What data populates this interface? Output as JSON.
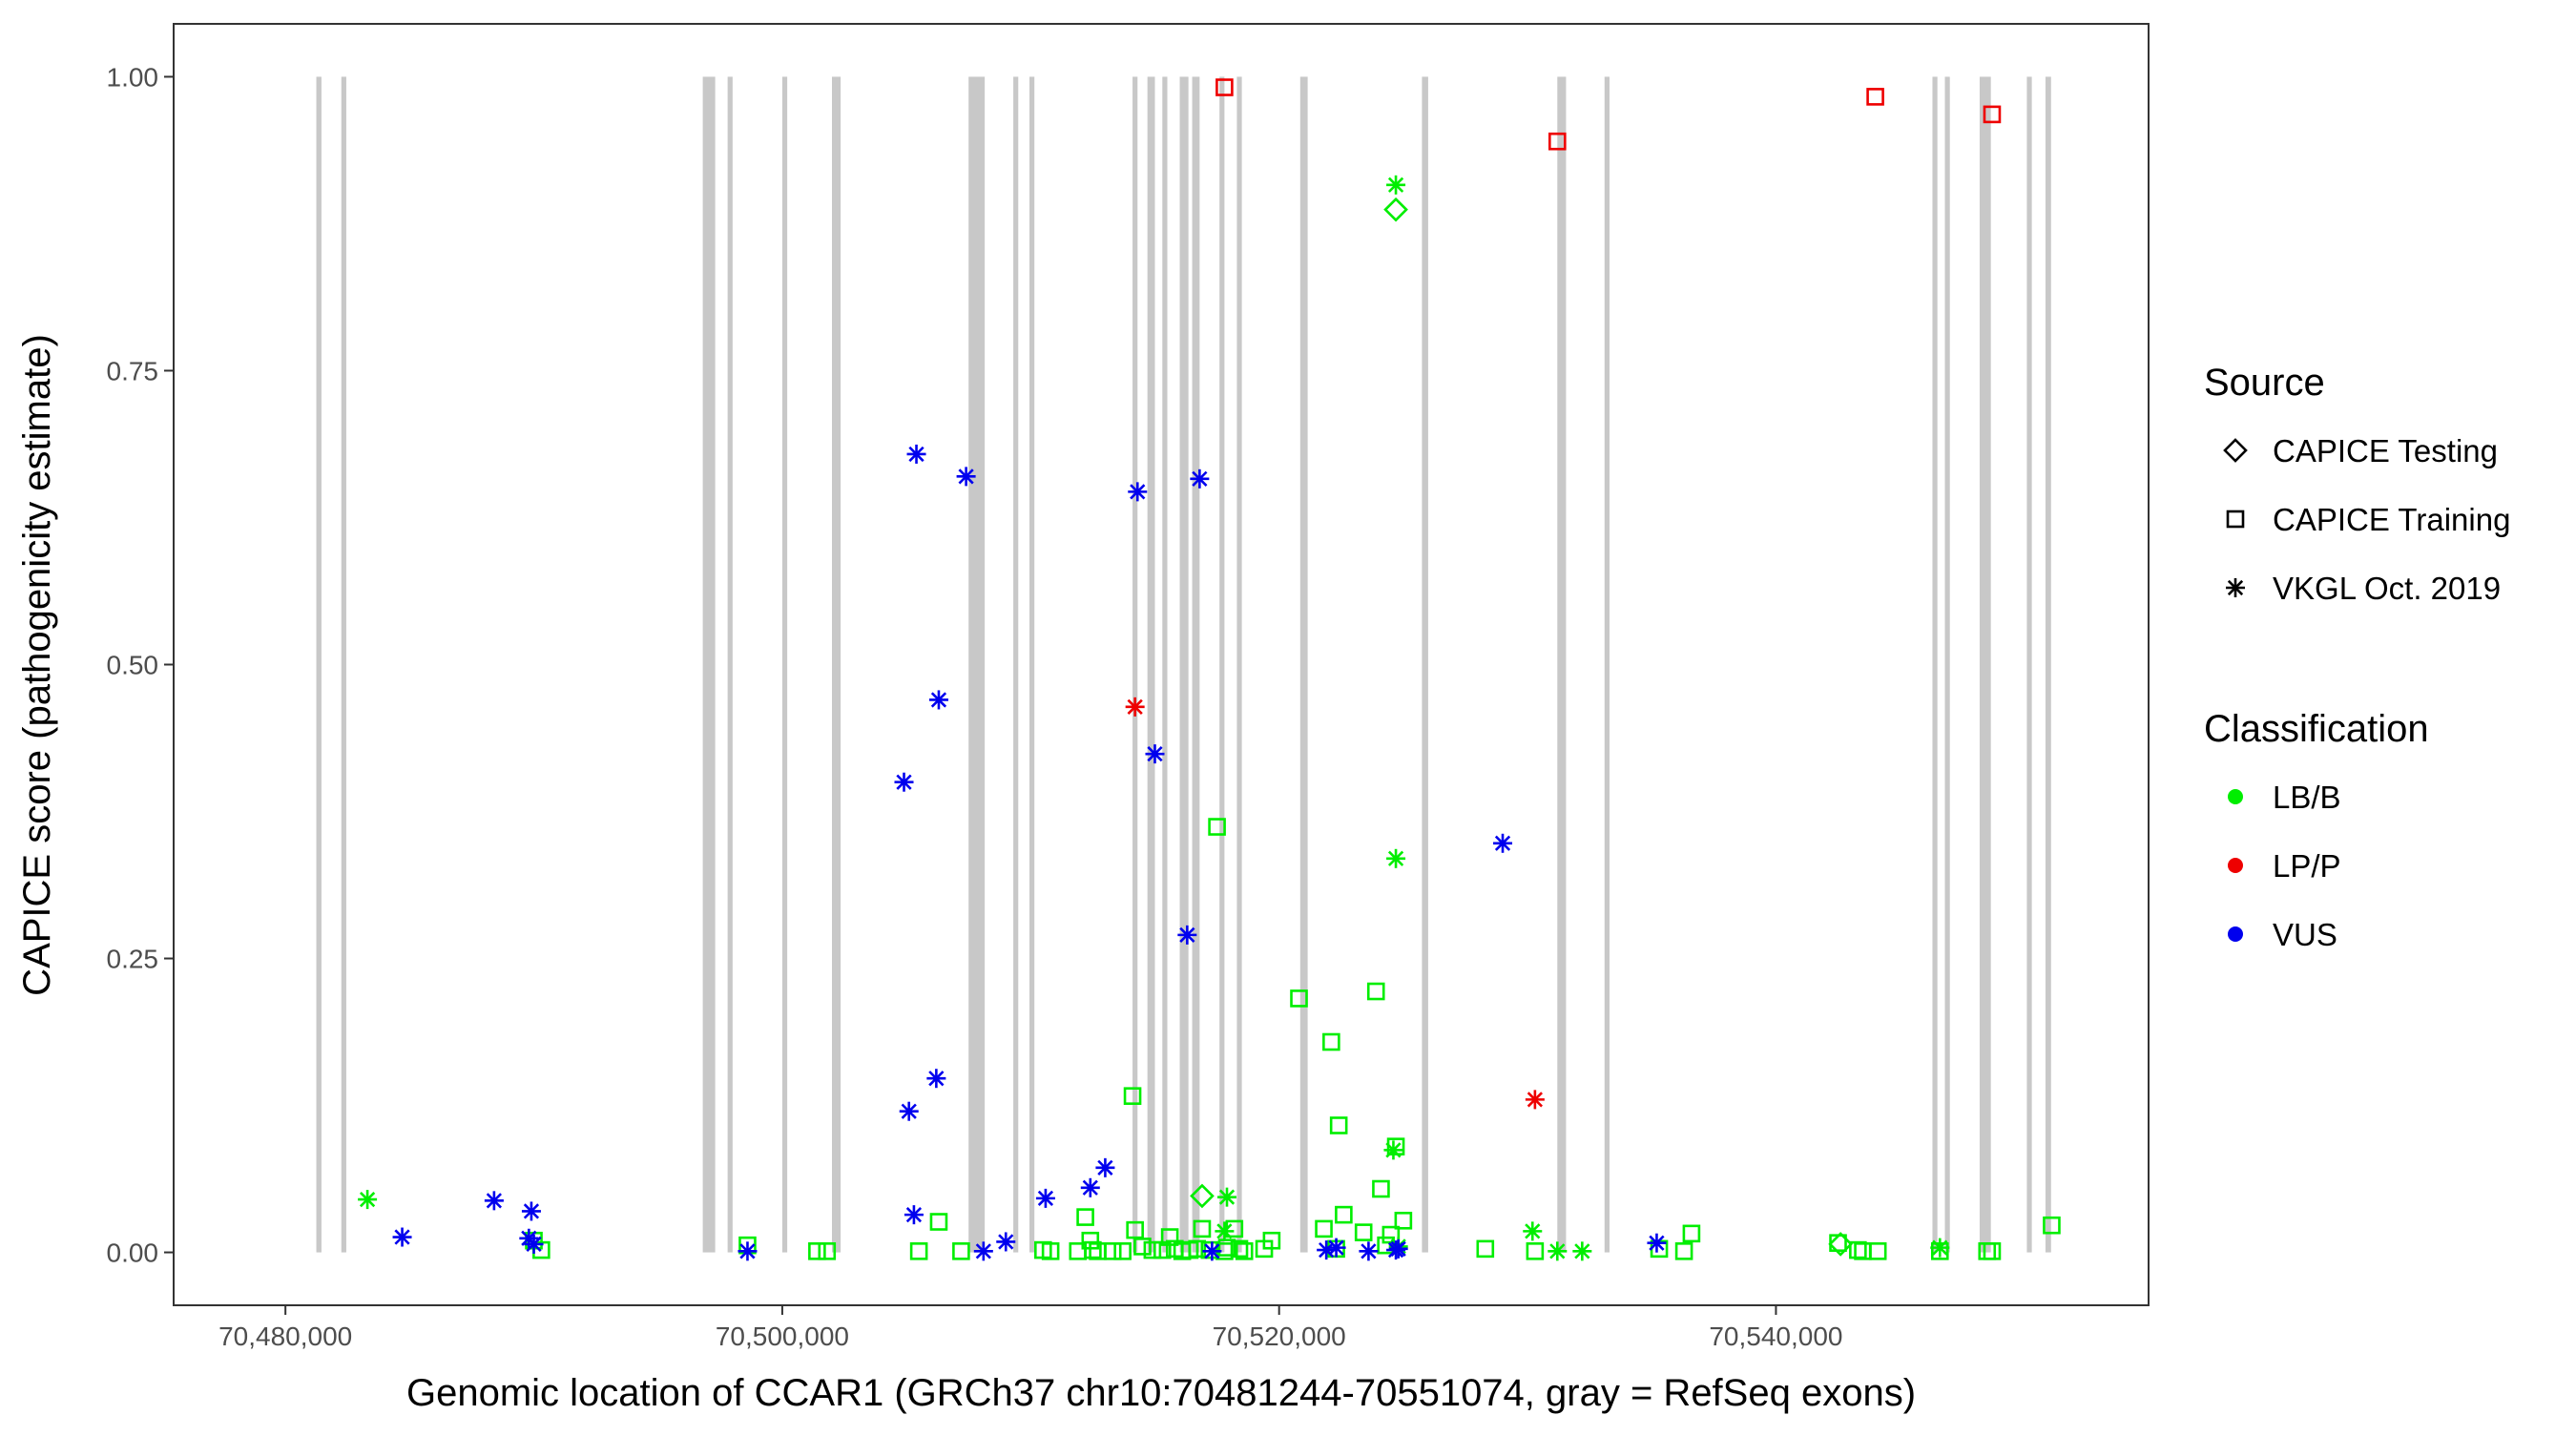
{
  "chart_data": {
    "type": "scatter",
    "xlabel": "Genomic location of CCAR1 (GRCh37 chr10:70481244-70551074, gray = RefSeq exons)",
    "ylabel": "CAPICE score (pathogenicity estimate)",
    "xlim": [
      70475500,
      70555000
    ],
    "ylim": [
      -0.045,
      1.045
    ],
    "x_ticks": [
      70480000,
      70500000,
      70520000,
      70540000
    ],
    "x_tick_labels": [
      "70,480,000",
      "70,500,000",
      "70,520,000",
      "70,540,000"
    ],
    "y_ticks": [
      0,
      0.25,
      0.5,
      0.75,
      1
    ],
    "y_tick_labels": [
      "0.00",
      "0.25",
      "0.50",
      "0.75",
      "1.00"
    ],
    "grid": false,
    "legend_position": "right",
    "legends": [
      {
        "title": "Source",
        "entries": [
          {
            "label": "CAPICE Testing",
            "shape": "diamond"
          },
          {
            "label": "CAPICE Training",
            "shape": "square"
          },
          {
            "label": "VKGL Oct. 2019",
            "shape": "asterisk"
          }
        ]
      },
      {
        "title": "Classification",
        "entries": [
          {
            "label": "LB/B",
            "color": "#00ee00"
          },
          {
            "label": "LP/P",
            "color": "#ee0000"
          },
          {
            "label": "VUS",
            "color": "#0000ee"
          }
        ]
      }
    ],
    "colors": {
      "LB/B": "#00ee00",
      "LP/P": "#ee0000",
      "VUS": "#0000ee",
      "exon": "#c8c8c8"
    },
    "exons": [
      [
        70481244,
        70481450
      ],
      [
        70482250,
        70482450
      ],
      [
        70496800,
        70497300
      ],
      [
        70497800,
        70498000
      ],
      [
        70500000,
        70500200
      ],
      [
        70502000,
        70502350
      ],
      [
        70507500,
        70508150
      ],
      [
        70509300,
        70509500
      ],
      [
        70509950,
        70510150
      ],
      [
        70514100,
        70514300
      ],
      [
        70514700,
        70515000
      ],
      [
        70515300,
        70515500
      ],
      [
        70516000,
        70516350
      ],
      [
        70516500,
        70516800
      ],
      [
        70517600,
        70517800
      ],
      [
        70518300,
        70518500
      ],
      [
        70520850,
        70521150
      ],
      [
        70525750,
        70526000
      ],
      [
        70531200,
        70531550
      ],
      [
        70533100,
        70533300
      ],
      [
        70546300,
        70546500
      ],
      [
        70546800,
        70547000
      ],
      [
        70548200,
        70548650
      ],
      [
        70550100,
        70550300
      ],
      [
        70550850,
        70551074
      ]
    ],
    "series": [
      {
        "name": "CAPICE Training / LP/P",
        "shape": "square",
        "class": "LP/P",
        "x": [
          70517800,
          70531200,
          70544000,
          70548700
        ],
        "y": [
          0.991,
          0.945,
          0.983,
          0.968
        ]
      },
      {
        "name": "CAPICE Training / LB/B",
        "shape": "square",
        "class": "LB/B",
        "x": [
          70490000,
          70490300,
          70498600,
          70501400,
          70501800,
          70505500,
          70506300,
          70507200,
          70510500,
          70510800,
          70511900,
          70512200,
          70512400,
          70512500,
          70512700,
          70513300,
          70513700,
          70514100,
          70514200,
          70514500,
          70514900,
          70515300,
          70515600,
          70515800,
          70516100,
          70516400,
          70516700,
          70516900,
          70517200,
          70517500,
          70517800,
          70517900,
          70518200,
          70518400,
          70518600,
          70519400,
          70519700,
          70520800,
          70521800,
          70522100,
          70522300,
          70522400,
          70522600,
          70523400,
          70523900,
          70524100,
          70524300,
          70524500,
          70524700,
          70525000,
          70528300,
          70530300,
          70535300,
          70536300,
          70536600,
          70542500,
          70543300,
          70543500,
          70544100,
          70546600,
          70548500,
          70548700,
          70551100
        ],
        "y": [
          0.01,
          0.002,
          0.006,
          0.001,
          0.001,
          0.001,
          0.026,
          0.001,
          0.002,
          0.001,
          0.001,
          0.03,
          0.01,
          0.002,
          0.001,
          0.001,
          0.001,
          0.133,
          0.019,
          0.005,
          0.002,
          0.002,
          0.013,
          0.003,
          0.001,
          0.002,
          0.003,
          0.02,
          0.002,
          0.362,
          0.001,
          0.004,
          0.02,
          0.003,
          0.001,
          0.003,
          0.01,
          0.216,
          0.02,
          0.179,
          0.003,
          0.108,
          0.032,
          0.017,
          0.222,
          0.054,
          0.006,
          0.015,
          0.09,
          0.027,
          0.003,
          0.001,
          0.003,
          0.001,
          0.016,
          0.008,
          0.002,
          0.001,
          0.001,
          0.001,
          0.001,
          0.001,
          0.023
        ]
      },
      {
        "name": "CAPICE Testing / LB/B",
        "shape": "diamond",
        "class": "LB/B",
        "x": [
          70516900,
          70524700,
          70542600
        ],
        "y": [
          0.048,
          0.887,
          0.007
        ]
      },
      {
        "name": "VKGL Oct. 2019 / LB/B",
        "shape": "asterisk",
        "class": "LB/B",
        "x": [
          70483300,
          70517900,
          70517800,
          70524700,
          70524700,
          70524600,
          70524800,
          70530200,
          70531200,
          70532200,
          70546600
        ],
        "y": [
          0.045,
          0.047,
          0.018,
          0.908,
          0.335,
          0.087,
          0.005,
          0.018,
          0.001,
          0.001,
          0.004
        ]
      },
      {
        "name": "VKGL Oct. 2019 / LP/P",
        "shape": "asterisk",
        "class": "LP/P",
        "x": [
          70514200,
          70530300
        ],
        "y": [
          0.464,
          0.13
        ]
      },
      {
        "name": "VKGL Oct. 2019 / VUS",
        "shape": "asterisk",
        "class": "VUS",
        "x": [
          70484700,
          70488400,
          70489900,
          70489800,
          70490000,
          70498600,
          70504900,
          70505100,
          70505400,
          70505300,
          70506200,
          70506300,
          70507400,
          70508100,
          70509000,
          70510600,
          70512400,
          70513000,
          70514300,
          70515000,
          70516300,
          70516800,
          70517300,
          70521900,
          70522300,
          70523600,
          70524700,
          70524800,
          70529000,
          70535200
        ],
        "y": [
          0.013,
          0.044,
          0.035,
          0.012,
          0.007,
          0.001,
          0.4,
          0.12,
          0.679,
          0.032,
          0.148,
          0.47,
          0.66,
          0.001,
          0.009,
          0.046,
          0.055,
          0.072,
          0.647,
          0.424,
          0.27,
          0.658,
          0.001,
          0.002,
          0.004,
          0.001,
          0.002,
          0.003,
          0.348,
          0.008
        ]
      }
    ]
  }
}
